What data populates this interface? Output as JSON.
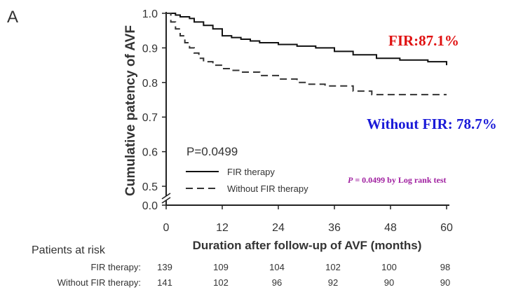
{
  "panel_label": "A",
  "chart_data": {
    "type": "line",
    "step": true,
    "title": "",
    "xlabel": "Duration after follow-up of AVF (months)",
    "ylabel": "Cumulative patency of AVF",
    "xlim": [
      0,
      60
    ],
    "ylim": [
      0.0,
      1.0
    ],
    "axis_break": true,
    "x_ticks": [
      0,
      12,
      24,
      36,
      48,
      60
    ],
    "y_ticks": [
      {
        "value": 1.0,
        "label": "1.0"
      },
      {
        "value": 0.9,
        "label": "0.9"
      },
      {
        "value": 0.8,
        "label": "0.8"
      },
      {
        "value": 0.7,
        "label": "0.7"
      },
      {
        "value": 0.6,
        "label": "0.6"
      },
      {
        "value": 0.5,
        "label": "0.5"
      },
      {
        "value": 0.0,
        "label": "0.0"
      }
    ],
    "grid": false,
    "series": [
      {
        "name": "FIR therapy",
        "style": "solid",
        "color": "#111111",
        "x": [
          0,
          2,
          3,
          5,
          6,
          8,
          10,
          12,
          14,
          16,
          18,
          20,
          24,
          28,
          32,
          36,
          40,
          45,
          50,
          56,
          60
        ],
        "y": [
          1.0,
          0.995,
          0.99,
          0.985,
          0.975,
          0.965,
          0.955,
          0.935,
          0.93,
          0.925,
          0.92,
          0.915,
          0.91,
          0.905,
          0.9,
          0.89,
          0.88,
          0.87,
          0.865,
          0.86,
          0.85
        ]
      },
      {
        "name": "Without FIR therapy",
        "style": "dashed",
        "color": "#333333",
        "x": [
          0,
          1,
          2,
          3,
          4,
          5,
          6,
          7,
          8,
          10,
          12,
          14,
          16,
          20,
          24,
          28,
          30,
          34,
          40,
          44,
          60
        ],
        "y": [
          1.0,
          0.975,
          0.955,
          0.935,
          0.915,
          0.9,
          0.885,
          0.87,
          0.86,
          0.85,
          0.84,
          0.835,
          0.83,
          0.82,
          0.81,
          0.8,
          0.795,
          0.79,
          0.775,
          0.765,
          0.765
        ]
      }
    ],
    "legend": {
      "position": "bottom-left",
      "items": [
        "FIR therapy",
        "Without FIR therapy"
      ]
    },
    "annotations": {
      "p_value_plot": "P=0.0499",
      "fir_rate": "FIR:87.1%",
      "without_fir_rate": "Without FIR: 78.7%",
      "log_rank_p": "P",
      "log_rank_rest": " = 0.0499 by Log rank test"
    },
    "colors": {
      "fir_rate": "#e01010",
      "without_fir_rate": "#1a1ad8",
      "log_rank": "#a020a0"
    }
  },
  "risk_table": {
    "title": "Patients at risk",
    "rows": [
      {
        "label": "FIR therapy:",
        "values": [
          "139",
          "109",
          "104",
          "102",
          "100",
          "98"
        ]
      },
      {
        "label": "Without FIR therapy:",
        "values": [
          "141",
          "102",
          "96",
          "92",
          "90",
          "90"
        ]
      }
    ]
  }
}
